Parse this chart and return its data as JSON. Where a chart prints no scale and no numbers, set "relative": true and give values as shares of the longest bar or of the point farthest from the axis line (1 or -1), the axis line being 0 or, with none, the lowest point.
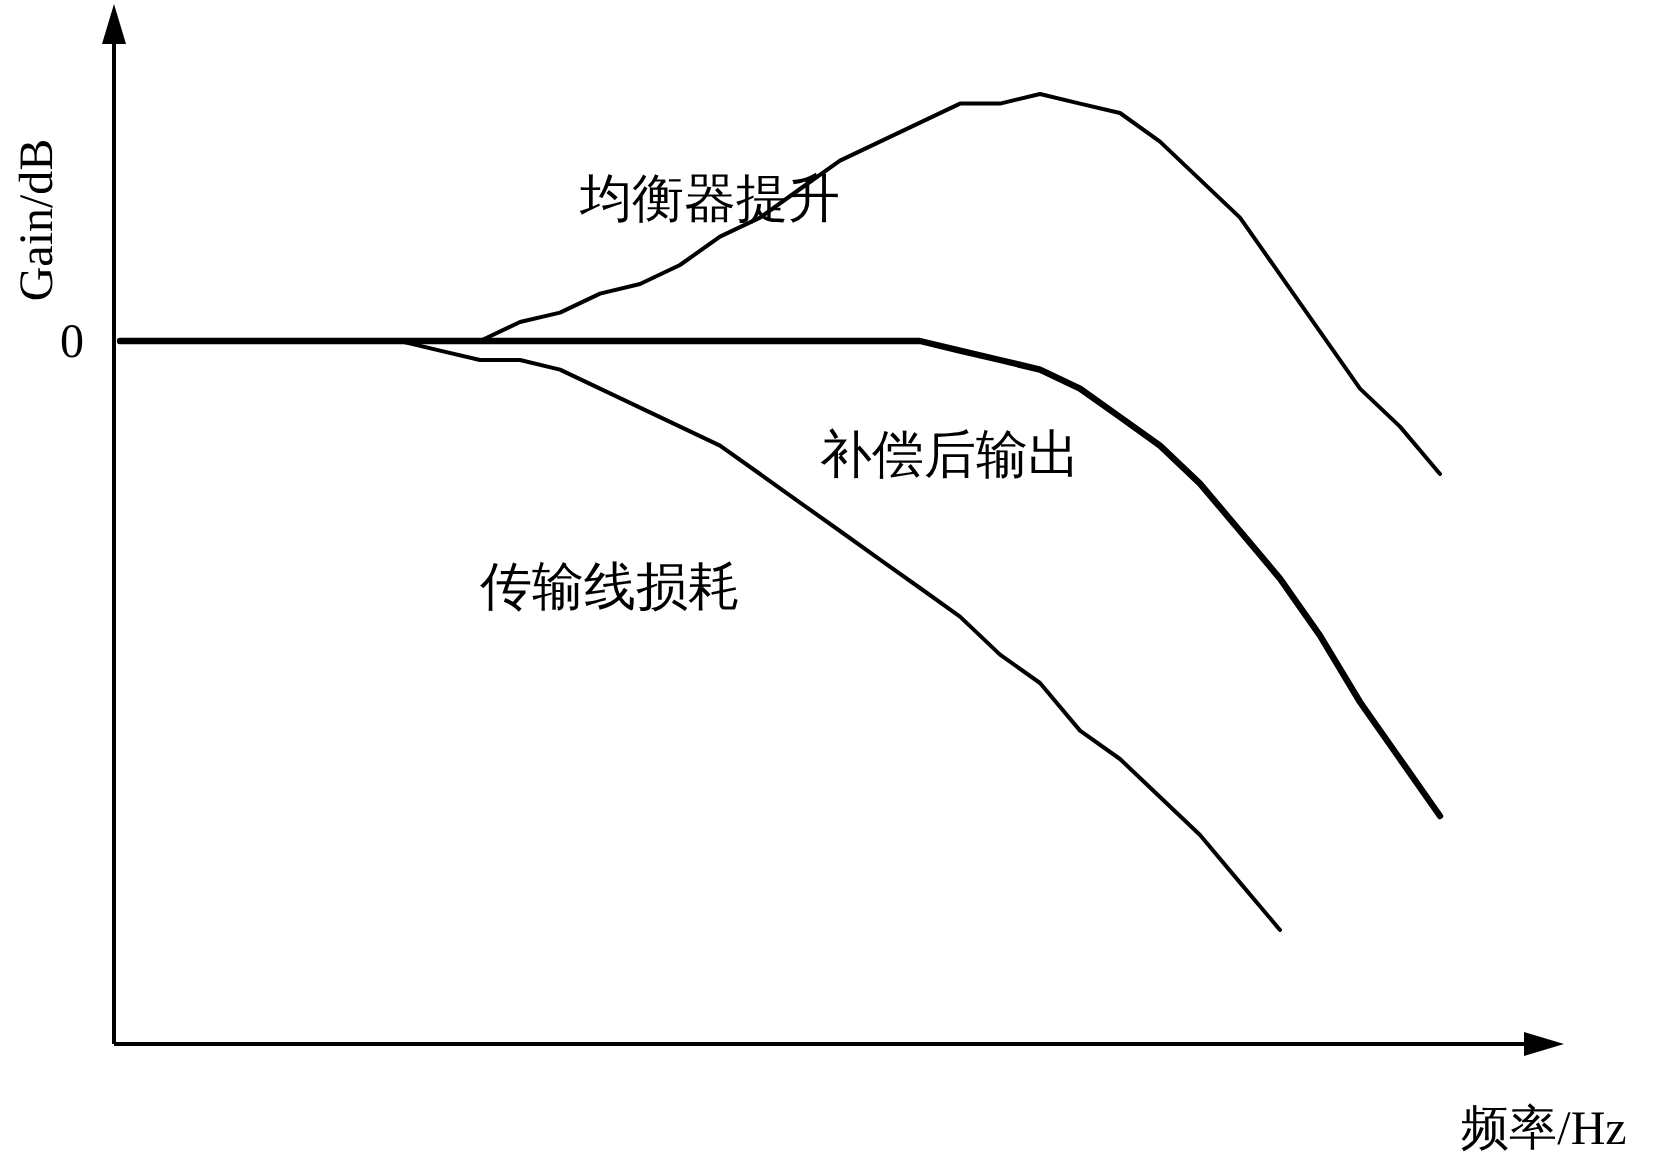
{
  "chart_data": {
    "type": "line",
    "relative": true,
    "xlabel": "频率/Hz",
    "ylabel": "Gain/dB",
    "annotations": [
      "0"
    ],
    "categories": [
      null,
      null,
      null,
      null,
      null,
      null,
      null,
      null,
      null,
      null,
      null,
      null,
      null,
      null,
      null,
      null,
      null,
      null,
      null,
      null,
      null,
      null,
      null,
      null,
      null,
      null,
      null,
      null,
      null,
      null,
      null,
      null,
      null,
      null
    ],
    "series": [
      {
        "name": "均衡器提升",
        "color": "#000000",
        "values": [
          0.74,
          0.74,
          0.74,
          0.74,
          0.74,
          0.74,
          0.74,
          0.74,
          0.74,
          0.74,
          0.76,
          0.77,
          0.79,
          0.8,
          0.82,
          0.85,
          0.87,
          0.9,
          0.93,
          0.95,
          0.97,
          0.99,
          0.99,
          1,
          0.99,
          0.98,
          0.95,
          0.91,
          0.87,
          0.81,
          0.75,
          0.69,
          0.65,
          0.6
        ]
      },
      {
        "name": "补偿后输出",
        "color": "#000000",
        "values": [
          0.74,
          0.74,
          0.74,
          0.74,
          0.74,
          0.74,
          0.74,
          0.74,
          0.74,
          0.74,
          0.74,
          0.74,
          0.74,
          0.74,
          0.74,
          0.74,
          0.74,
          0.74,
          0.74,
          0.74,
          0.74,
          0.73,
          0.72,
          0.71,
          0.69,
          0.66,
          0.63,
          0.59,
          0.54,
          0.49,
          0.43,
          0.36,
          0.3,
          0.24
        ]
      },
      {
        "name": "传输线损耗",
        "color": "#000000",
        "values": [
          0.74,
          0.74,
          0.74,
          0.74,
          0.74,
          0.74,
          0.74,
          0.74,
          0.73,
          0.72,
          0.72,
          0.71,
          0.69,
          0.67,
          0.65,
          0.63,
          0.6,
          0.57,
          0.54,
          0.51,
          0.48,
          0.45,
          0.41,
          0.38,
          0.33,
          0.3,
          0.26,
          0.22,
          0.17,
          0.12,
          null,
          null,
          null,
          null
        ]
      }
    ]
  }
}
